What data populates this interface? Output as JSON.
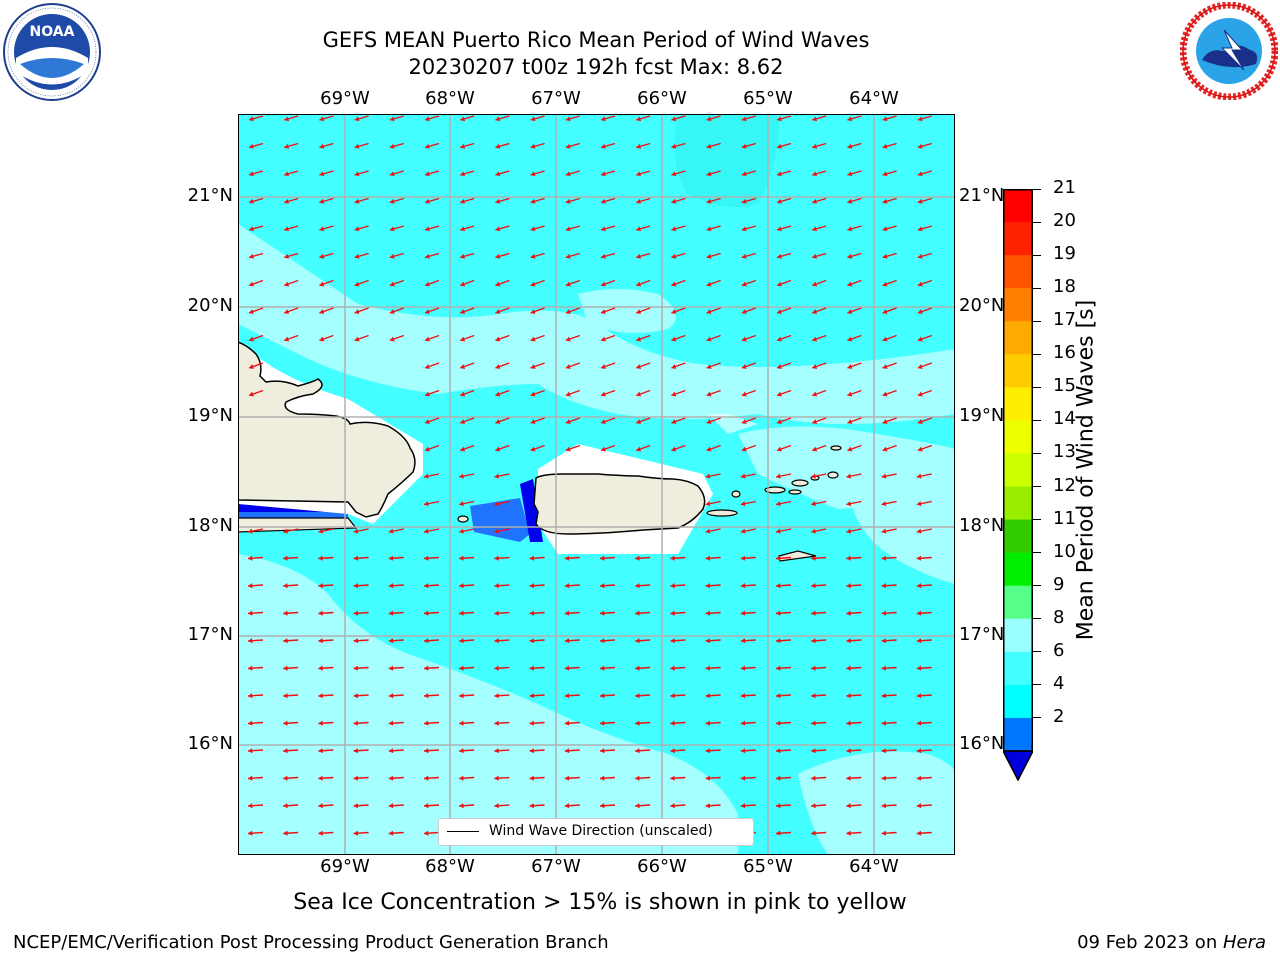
{
  "header": {
    "title_line1": "GEFS MEAN Puerto Rico Mean Period of Wind Waves",
    "title_line2": "20230207 t00z 192h fcst   Max: 8.62"
  },
  "logos": {
    "noaa_text": "NOAA",
    "noaa_ring": "NATIONAL OCEANIC AND ATMOSPHERIC ADMINISTRATION · U.S. DEPARTMENT OF COMMERCE",
    "nws_ring": "NATIONAL WEATHER SERVICE"
  },
  "axes": {
    "lon_labels": [
      "69°W",
      "68°W",
      "67°W",
      "66°W",
      "65°W",
      "64°W"
    ],
    "lat_labels": [
      "21°N",
      "20°N",
      "19°N",
      "18°N",
      "17°N",
      "16°N"
    ]
  },
  "legend": {
    "label": "Wind Wave Direction (unscaled)"
  },
  "colorbar": {
    "title": "Mean Period of Wind Waves [s]",
    "ticks": [
      "21",
      "20",
      "19",
      "18",
      "17",
      "16",
      "15",
      "14",
      "13",
      "12",
      "11",
      "10",
      "9",
      "8",
      "6",
      "4",
      "2"
    ],
    "colors": [
      "#ff0000",
      "#ff2200",
      "#ff5500",
      "#ff8000",
      "#ffaa00",
      "#ffcc00",
      "#ffee00",
      "#eeff00",
      "#ccff00",
      "#99ee00",
      "#33cc00",
      "#00ee00",
      "#55ff88",
      "#99ffff",
      "#44ffff",
      "#00ffff",
      "#0077ff"
    ],
    "extend_color": "#0000dd"
  },
  "map": {
    "sea_color": "#44ffff",
    "light_sea_color": "#a6ffff",
    "land_color": "#efedde",
    "arrow_color": "#ee1111",
    "grid_color": "#b0b0b0"
  },
  "notes": {
    "sea_ice": "Sea Ice Concentration > 15% is shown in pink to yellow"
  },
  "footer": {
    "left": "NCEP/EMC/Verification Post Processing Product Generation Branch",
    "date": "09 Feb 2023 on ",
    "machine": "Hera"
  }
}
